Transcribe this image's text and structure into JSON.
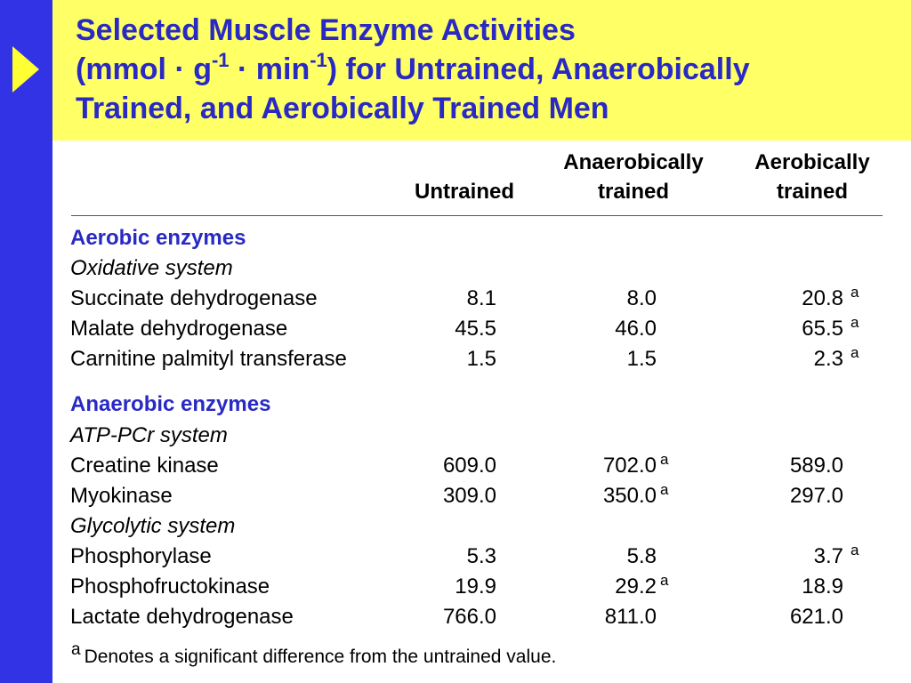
{
  "title": {
    "line1": "Selected Muscle Enzyme Activities",
    "line2_a": "(mmol · g",
    "line2_sup1": "-1",
    "line2_b": " · min",
    "line2_sup2": "-1",
    "line2_c": ") for Untrained, Anaerobically",
    "line3": "Trained, and Aerobically Trained Men"
  },
  "columns": {
    "untrained": "Untrained",
    "anaerobic_1": "Anaerobically",
    "anaerobic_2": "trained",
    "aerobic_1": "Aerobically",
    "aerobic_2": "trained"
  },
  "sections": {
    "aerobic": {
      "label": "Aerobic enzymes",
      "system": "Oxidative system",
      "rows": [
        {
          "name": "Succinate dehydrogenase",
          "untrained": "8.1",
          "anaerobic": "8.0",
          "aerobic": "20.8",
          "aerobic_mark": "a"
        },
        {
          "name": "Malate dehydrogenase",
          "untrained": "45.5",
          "anaerobic": "46.0",
          "aerobic": "65.5",
          "aerobic_mark": "a"
        },
        {
          "name": "Carnitine palmityl transferase",
          "untrained": "1.5",
          "anaerobic": "1.5",
          "aerobic": "2.3",
          "aerobic_mark": "a"
        }
      ]
    },
    "anaerobic": {
      "label": "Anaerobic enzymes",
      "system1": "ATP-PCr system",
      "rows1": [
        {
          "name": "Creatine kinase",
          "untrained": "609.0",
          "anaerobic": "702.0",
          "anaerobic_mark": "a",
          "aerobic": "589.0"
        },
        {
          "name": "Myokinase",
          "untrained": "309.0",
          "anaerobic": "350.0",
          "anaerobic_mark": "a",
          "aerobic": "297.0"
        }
      ],
      "system2": "Glycolytic system",
      "rows2": [
        {
          "name": "Phosphorylase",
          "untrained": "5.3",
          "anaerobic": "5.8",
          "aerobic": "3.7",
          "aerobic_mark": "a"
        },
        {
          "name": "Phosphofructokinase",
          "untrained": "19.9",
          "anaerobic": "29.2",
          "anaerobic_mark": "a",
          "aerobic": "18.9"
        },
        {
          "name": "Lactate dehydrogenase",
          "untrained": "766.0",
          "anaerobic": "811.0",
          "aerobic": "621.0"
        }
      ]
    }
  },
  "footnote": {
    "mark": "a",
    "text": "Denotes a significant difference from the untrained value."
  },
  "colors": {
    "sidebar": "#3333e6",
    "header": "#ffff66",
    "arrow": "#ffff33",
    "title_text": "#2929c4",
    "section_text": "#2929c4"
  }
}
